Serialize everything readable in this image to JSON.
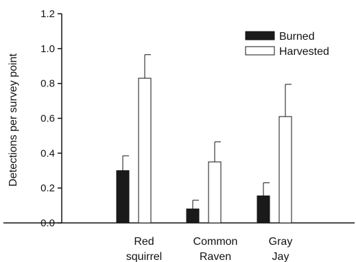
{
  "chart_data": {
    "type": "bar",
    "ylabel": "Detections per survey point",
    "ylim": [
      0,
      1.2
    ],
    "yticks": [
      "0.0",
      "0.2",
      "0.4",
      "0.6",
      "0.8",
      "1.0",
      "1.2"
    ],
    "categories": [
      {
        "lines": [
          "Red",
          "squirrel"
        ]
      },
      {
        "lines": [
          "Common",
          "Raven"
        ]
      },
      {
        "lines": [
          "Gray",
          "Jay"
        ]
      }
    ],
    "series": [
      {
        "name": "Burned",
        "fill": "#1a1a1a",
        "values": [
          0.3,
          0.08,
          0.155
        ],
        "errors": [
          0.085,
          0.05,
          0.075
        ]
      },
      {
        "name": "Harvested",
        "fill": "#ffffff",
        "values": [
          0.83,
          0.35,
          0.61
        ],
        "errors": [
          0.135,
          0.115,
          0.185
        ]
      }
    ],
    "legend_position": "top-right",
    "grid": false
  }
}
